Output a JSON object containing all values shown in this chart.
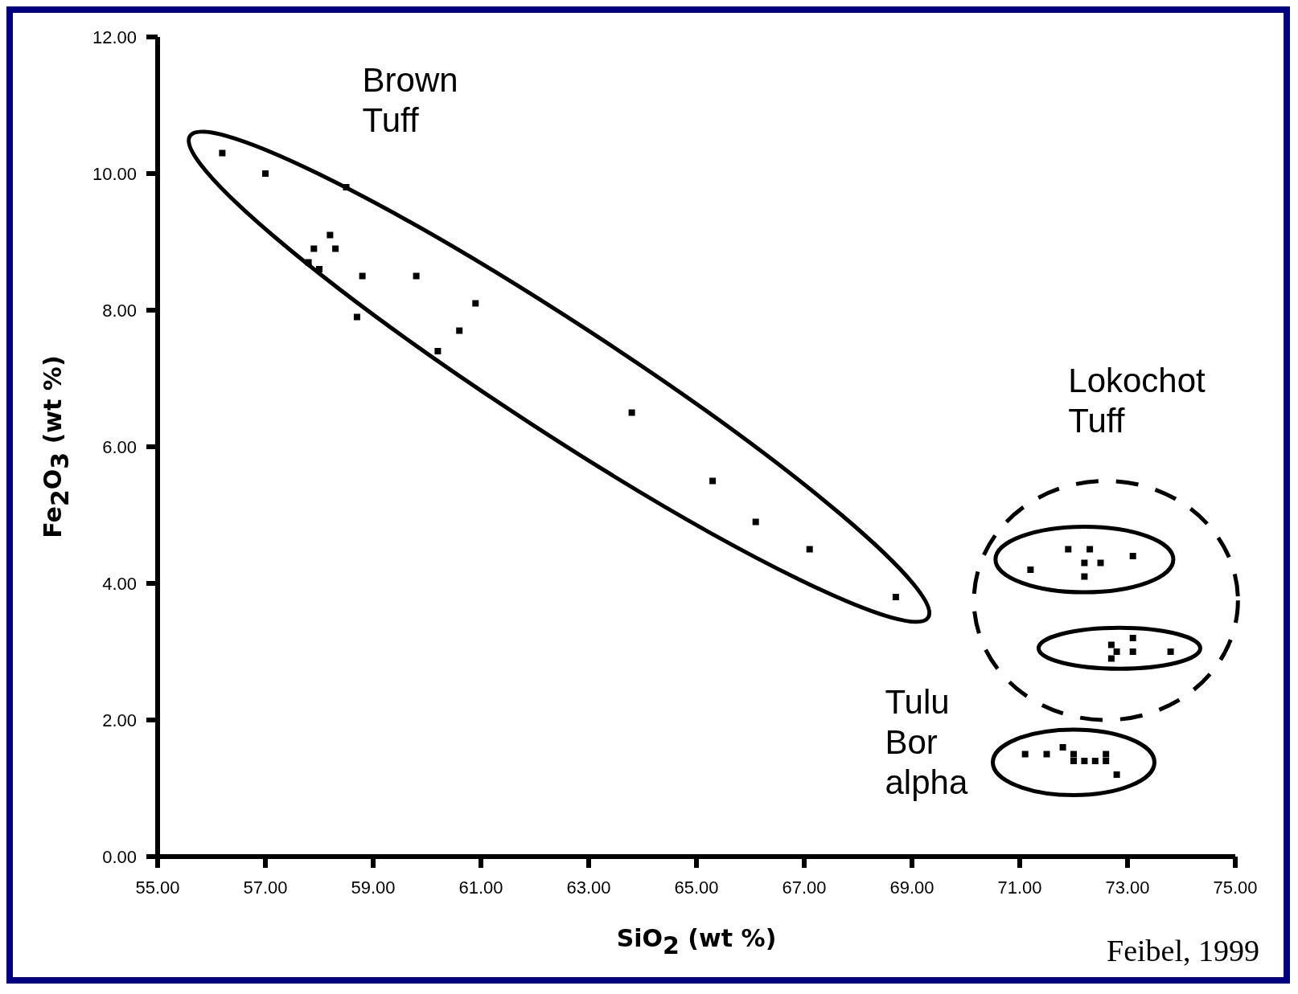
{
  "chart_data": {
    "type": "scatter",
    "xlabel": "SiO$_{2}$ (wt %)",
    "ylabel": "Fe$_{2}$O$_{3}$ (wt %)",
    "xlim": [
      55,
      75
    ],
    "xticks": [
      {
        "value": 55,
        "label": "55.00"
      },
      {
        "value": 57,
        "label": "57.00"
      },
      {
        "value": 59,
        "label": "59.00"
      },
      {
        "value": 61,
        "label": "61.00"
      },
      {
        "value": 63,
        "label": "63.00"
      },
      {
        "value": 65,
        "label": "65.00"
      },
      {
        "value": 67,
        "label": "67.00"
      },
      {
        "value": 69,
        "label": "69.00"
      },
      {
        "value": 71,
        "label": "71.00"
      },
      {
        "value": 73,
        "label": "73.00"
      },
      {
        "value": 75,
        "label": "75.00"
      }
    ],
    "ylim": [
      0,
      12
    ],
    "yticks": [
      {
        "value": 0,
        "label": "0.00"
      },
      {
        "value": 2,
        "label": "2.00"
      },
      {
        "value": 4,
        "label": "4.00"
      },
      {
        "value": 6,
        "label": "6.00"
      },
      {
        "value": 8,
        "label": "8.00"
      },
      {
        "value": 10,
        "label": "10.00"
      },
      {
        "value": 12,
        "label": "12.00"
      }
    ],
    "marker": "square",
    "legend": false,
    "grid": false,
    "series": [
      {
        "color": "#000000",
        "x": [
          56.2,
          57.0,
          58.5,
          58.2,
          57.9,
          58.3,
          57.8,
          58.0,
          58.8,
          59.8,
          60.9,
          58.7,
          60.6,
          60.2,
          63.8,
          65.3,
          66.1,
          67.1,
          68.7
        ],
        "values": [
          10.3,
          10.0,
          9.8,
          9.1,
          8.9,
          8.9,
          8.7,
          8.6,
          8.5,
          8.5,
          8.1,
          7.9,
          7.7,
          7.4,
          6.5,
          5.5,
          4.9,
          4.5,
          3.8
        ]
      },
      {
        "color": "#000000",
        "x": [
          71.2,
          71.9,
          72.3,
          72.2,
          72.5,
          72.2,
          73.1
        ],
        "values": [
          4.2,
          4.5,
          4.5,
          4.3,
          4.3,
          4.1,
          4.4
        ]
      },
      {
        "color": "#000000",
        "x": [
          73.1,
          72.8,
          72.7,
          73.1,
          73.8,
          72.7
        ],
        "values": [
          3.2,
          3.0,
          3.1,
          3.0,
          3.0,
          2.9
        ]
      },
      {
        "color": "#000000",
        "x": [
          71.1,
          71.5,
          71.8,
          72.0,
          72.0,
          72.2,
          72.6,
          72.6,
          72.8,
          72.4
        ],
        "values": [
          1.5,
          1.5,
          1.6,
          1.5,
          1.4,
          1.4,
          1.5,
          1.4,
          1.2,
          1.4
        ]
      }
    ],
    "annotations": [
      "Brown Tuff",
      "Lokochot Tuff",
      "Tulu Bor alpha",
      "Feibel, 1999"
    ]
  }
}
